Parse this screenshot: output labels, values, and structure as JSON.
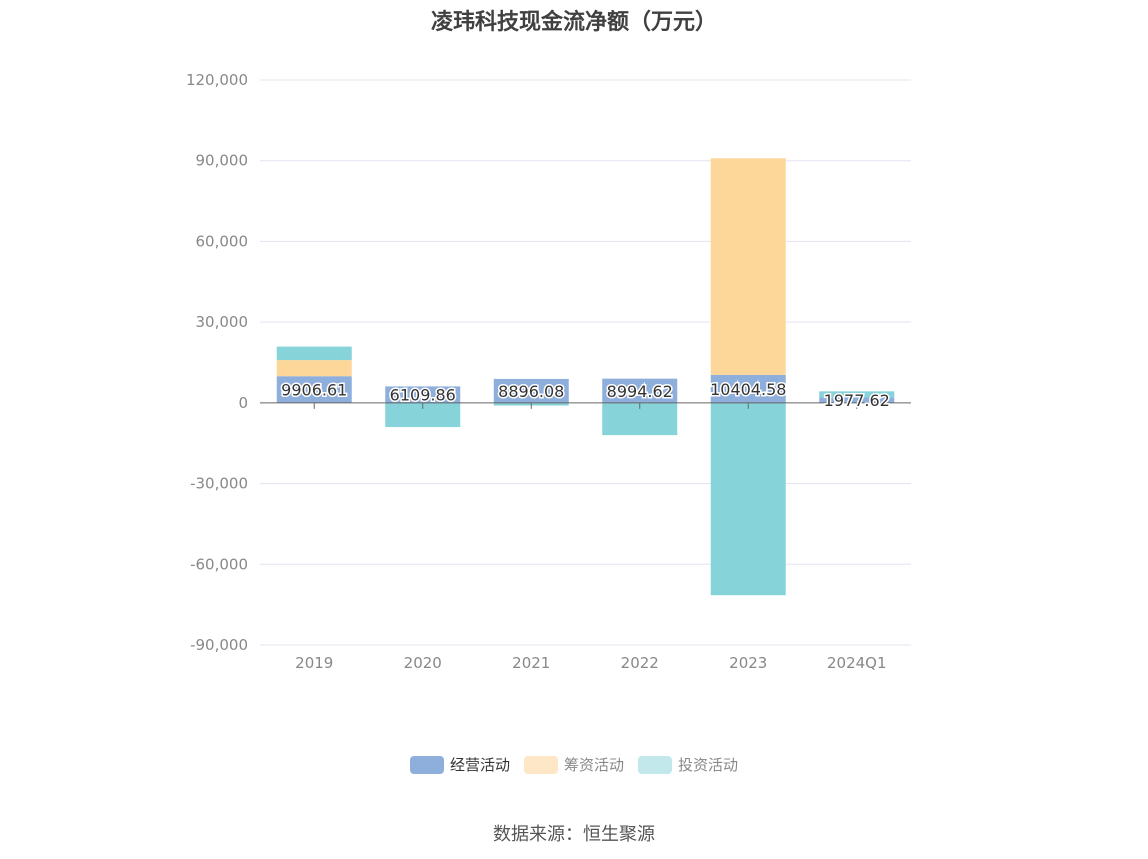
{
  "chart_data": {
    "type": "bar",
    "stacked": true,
    "title": "凌玮科技现金流净额（万元）",
    "categories": [
      "2019",
      "2020",
      "2021",
      "2022",
      "2023",
      "2024Q1"
    ],
    "ylim": [
      -90000,
      120000
    ],
    "yticks": [
      120000,
      90000,
      60000,
      30000,
      0,
      -30000,
      -60000,
      -90000
    ],
    "ytick_labels": [
      "120,000",
      "90,000",
      "60,000",
      "30,000",
      "0",
      "-30,000",
      "-60,000",
      "-90,000"
    ],
    "grid": true,
    "legend_position": "bottom-center",
    "series": [
      {
        "name": "经营活动",
        "color": "#8eaedb",
        "values": [
          9906.61,
          6109.86,
          8896.08,
          8994.62,
          10404.58,
          1977.62
        ],
        "labels": [
          "9906.61",
          "6109.86",
          "8896.08",
          "8994.62",
          "10404.58",
          "1977.62"
        ]
      },
      {
        "name": "筹资活动",
        "color": "#fdd79a",
        "values": [
          6000,
          0,
          0,
          0,
          80500,
          0
        ]
      },
      {
        "name": "投资活动",
        "color": "#86d4d9",
        "values": [
          5000,
          -9000,
          -1000,
          -12000,
          -71500,
          2300
        ]
      }
    ]
  },
  "legend": {
    "items": [
      {
        "label": "经营活动",
        "color": "#8eaedb"
      },
      {
        "label": "筹资活动",
        "color": "#fde7c6"
      },
      {
        "label": "投资活动",
        "color": "#c2e8eb"
      }
    ]
  },
  "source": "数据来源：恒生聚源"
}
